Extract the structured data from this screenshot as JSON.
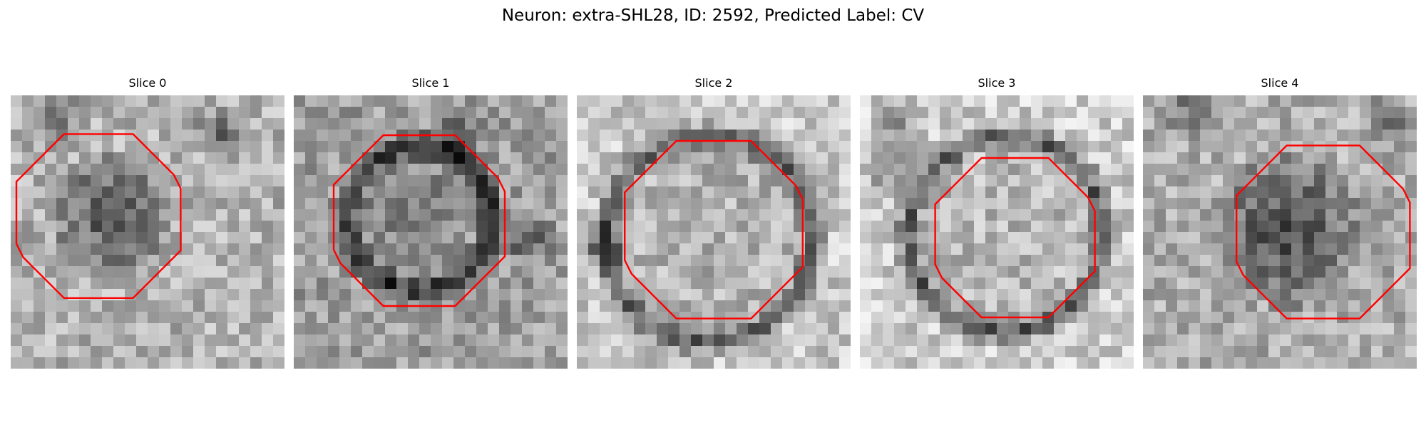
{
  "figure": {
    "title": "Neuron: extra-SHL28, ID: 2592, Predicted Label: CV",
    "contour_color": "#ff0000",
    "colormap": "grayscale"
  },
  "slices": [
    {
      "title": "Slice 0"
    },
    {
      "title": "Slice 1"
    },
    {
      "title": "Slice 2"
    },
    {
      "title": "Slice 3"
    },
    {
      "title": "Slice 4"
    }
  ]
}
